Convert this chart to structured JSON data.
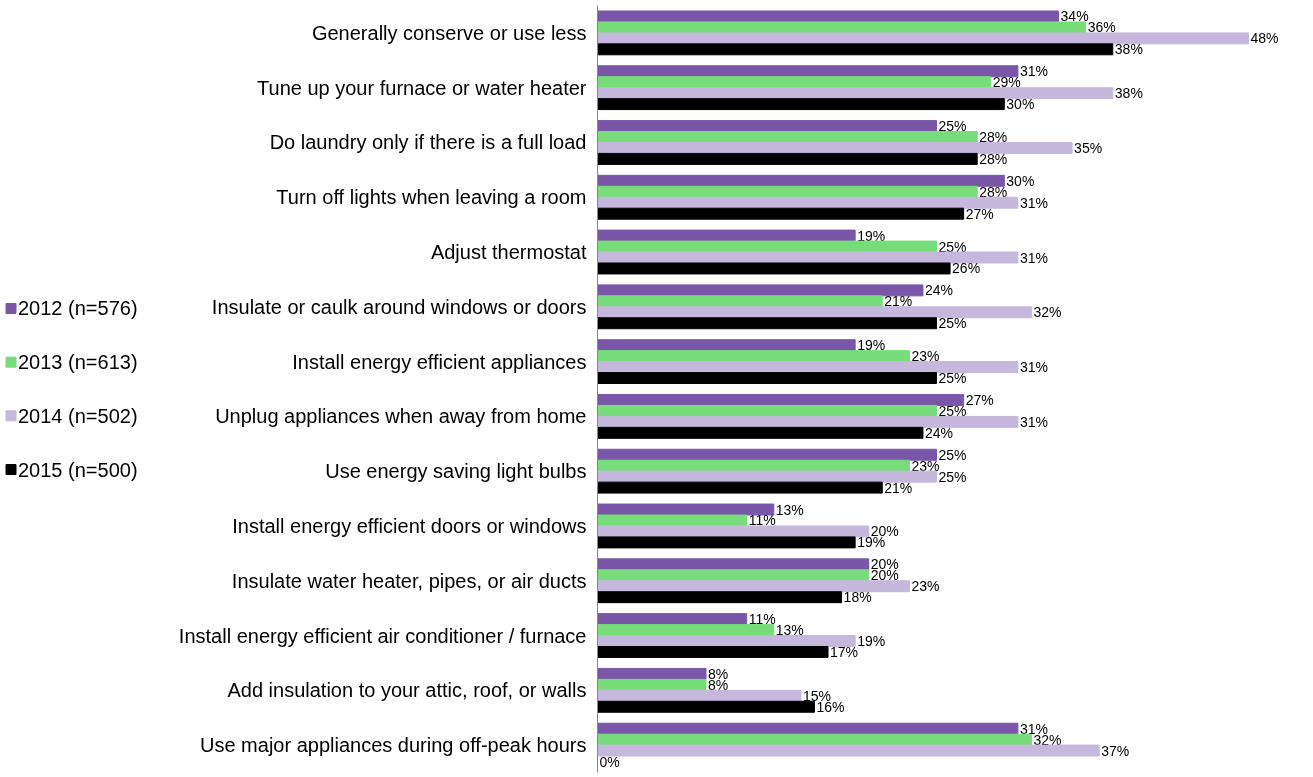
{
  "chart_data": {
    "type": "bar",
    "orientation": "horizontal",
    "legend": "left",
    "grid": false,
    "tick_labels": "y",
    "categories": [
      "Generally conserve or use less",
      "Tune up your furnace or water heater",
      "Do laundry only if there is a full load",
      "Turn off lights when leaving a room",
      "Adjust thermostat",
      "Insulate or caulk around windows or doors",
      "Install energy efficient appliances",
      "Unplug appliances when away from home",
      "Use energy saving light bulbs",
      "Install energy efficient doors or windows",
      "Insulate water heater, pipes, or air ducts",
      "Install energy efficient air conditioner / furnace",
      "Add insulation to your attic, roof, or walls",
      "Use major appliances during off-peak hours"
    ],
    "series": [
      {
        "name": "2012 (n=576)",
        "color": "#7a56a8",
        "values": [
          34,
          31,
          25,
          30,
          19,
          24,
          19,
          27,
          25,
          13,
          20,
          11,
          8,
          31
        ],
        "value_labels": [
          "34%",
          "31%",
          "25%",
          "30%",
          "19%",
          "24%",
          "19%",
          "27%",
          "25%",
          "13%",
          "20%",
          "11%",
          "8%",
          "31%"
        ]
      },
      {
        "name": "2013 (n=613)",
        "color": "#77dd7a",
        "values": [
          36,
          29,
          28,
          28,
          25,
          21,
          23,
          25,
          23,
          11,
          20,
          13,
          8,
          32
        ],
        "value_labels": [
          "36%",
          "29%",
          "28%",
          "28%",
          "25%",
          "21%",
          "23%",
          "25%",
          "23%",
          "11%",
          "20%",
          "13%",
          "8%",
          "32%"
        ]
      },
      {
        "name": "2014 (n=502)",
        "color": "#c6b7dc",
        "values": [
          48,
          38,
          35,
          31,
          31,
          32,
          31,
          31,
          25,
          20,
          23,
          19,
          15,
          37
        ],
        "value_labels": [
          "48%",
          "38%",
          "35%",
          "31%",
          "31%",
          "32%",
          "31%",
          "31%",
          "25%",
          "20%",
          "23%",
          "19%",
          "15%",
          "37%"
        ]
      },
      {
        "name": "2015 (n=500)",
        "color": "#000000",
        "values": [
          38,
          30,
          28,
          27,
          26,
          25,
          25,
          24,
          21,
          19,
          18,
          17,
          16,
          0
        ],
        "value_labels": [
          "38%",
          "30%",
          "28%",
          "27%",
          "26%",
          "25%",
          "25%",
          "24%",
          "21%",
          "19%",
          "18%",
          "17%",
          "16%",
          "0%"
        ]
      }
    ]
  }
}
